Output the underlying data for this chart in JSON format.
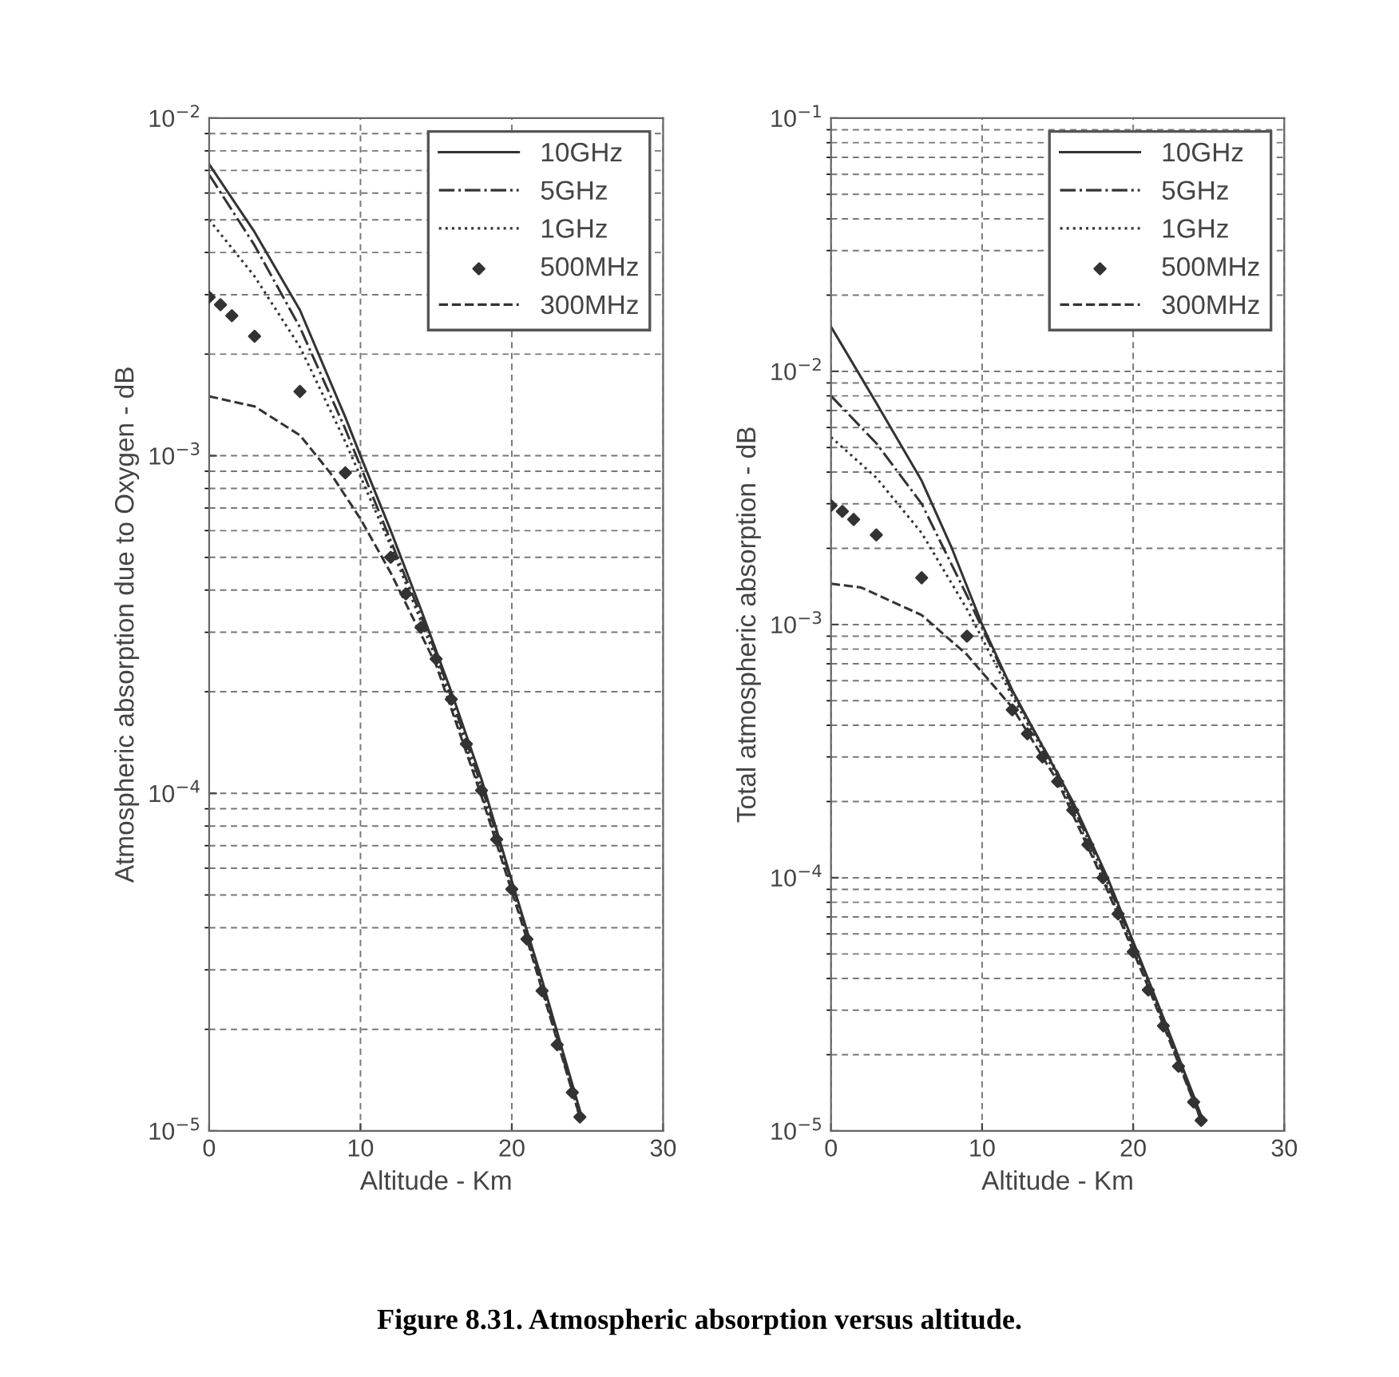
{
  "chart_data": [
    {
      "type": "line",
      "xlabel": "Altitude - Km",
      "ylabel": "Atmospheric absorption due to Oxygen - dB",
      "log": "y",
      "grid": true,
      "legend": "top right",
      "xlim": [
        0,
        30
      ],
      "xticks": [
        0,
        10,
        20,
        30
      ],
      "ylim": [
        1e-05,
        0.01
      ],
      "yticks": [
        {
          "value": 1e-05,
          "label": "10$^{−5}$"
        },
        {
          "value": 0.0001,
          "label": "10$^{−4}$"
        },
        {
          "value": 0.001,
          "label": "10$^{−3}$"
        },
        {
          "value": 0.01,
          "label": "10$^{−2}$"
        }
      ],
      "annotations": [
        "Figure 8.31. Atmospheric absorption versus altitude."
      ],
      "series": [
        {
          "name": "10GHz",
          "color": "#333333",
          "line_style": "solid",
          "x": [
            0,
            3,
            6,
            9,
            10,
            12,
            14,
            16,
            18,
            20,
            22,
            24.5
          ],
          "values": [
            0.0073,
            0.0046,
            0.0027,
            0.0013,
            0.001,
            0.0006,
            0.00035,
            0.0002,
            0.00011,
            5.5e-05,
            2.8e-05,
            1.15e-05
          ]
        },
        {
          "name": "5GHz",
          "color": "#333333",
          "line_style": "dashdot",
          "x": [
            0,
            3,
            6,
            9,
            12,
            15,
            18,
            21,
            24.5
          ],
          "values": [
            0.0068,
            0.0042,
            0.0024,
            0.0012,
            0.00056,
            0.00026,
            0.000105,
            3.9e-05,
            1.1e-05
          ]
        },
        {
          "name": "1GHz",
          "color": "#333333",
          "line_style": "dotted",
          "x": [
            0,
            3,
            6,
            9,
            12,
            15,
            18,
            21,
            24.5
          ],
          "values": [
            0.005,
            0.0034,
            0.0021,
            0.0011,
            0.00054,
            0.00025,
            0.0001,
            3.8e-05,
            1.1e-05
          ]
        },
        {
          "name": "500MHz",
          "type": "scatter",
          "marker": "diamond",
          "color": "#333333",
          "x": [
            0,
            0.75,
            1.5,
            3,
            6,
            9,
            12,
            13,
            14,
            15,
            16,
            17,
            18,
            19,
            20,
            21,
            22,
            23,
            24,
            24.5
          ],
          "values": [
            0.00295,
            0.0028,
            0.0026,
            0.00226,
            0.00155,
            0.00089,
            0.0005,
            0.00039,
            0.00031,
            0.00025,
            0.00019,
            0.00014,
            0.000102,
            7.3e-05,
            5.2e-05,
            3.7e-05,
            2.6e-05,
            1.8e-05,
            1.3e-05,
            1.1e-05
          ]
        },
        {
          "name": "300MHz",
          "color": "#333333",
          "line_style": "dashed",
          "x": [
            0,
            3,
            6,
            8,
            10,
            12,
            15,
            18,
            21,
            24.5
          ],
          "values": [
            0.0015,
            0.0014,
            0.00115,
            0.00089,
            0.00065,
            0.00045,
            0.00024,
            9.8e-05,
            3.7e-05,
            1.1e-05
          ]
        }
      ]
    },
    {
      "type": "line",
      "xlabel": "Altitude - Km",
      "ylabel": "Total atmospheric absorption - dB",
      "log": "y",
      "grid": true,
      "legend": "top right",
      "xlim": [
        0,
        30
      ],
      "xticks": [
        0,
        10,
        20,
        30
      ],
      "ylim": [
        1e-05,
        0.1
      ],
      "yticks": [
        {
          "value": 1e-05,
          "label": "10$^{−5}$"
        },
        {
          "value": 0.0001,
          "label": "10$^{−4}$"
        },
        {
          "value": 0.001,
          "label": "10$^{−3}$"
        },
        {
          "value": 0.01,
          "label": "10$^{−2}$"
        },
        {
          "value": 0.1,
          "label": "10$^{−1}$"
        }
      ],
      "series": [
        {
          "name": "10GHz",
          "color": "#333333",
          "line_style": "solid",
          "x": [
            0,
            3,
            6,
            8,
            10,
            12,
            14,
            16,
            18.3,
            20,
            22,
            24.5
          ],
          "values": [
            0.015,
            0.0075,
            0.0037,
            0.002,
            0.001,
            0.00055,
            0.00033,
            0.0002,
            0.0001,
            5.6e-05,
            2.8e-05,
            1.15e-05
          ]
        },
        {
          "name": "5GHz",
          "color": "#333333",
          "line_style": "dashdot",
          "x": [
            0,
            3,
            6,
            9,
            12,
            15,
            18,
            21,
            24.5
          ],
          "values": [
            0.008,
            0.0052,
            0.003,
            0.0013,
            0.00054,
            0.00026,
            0.000105,
            3.9e-05,
            1.1e-05
          ]
        },
        {
          "name": "1GHz",
          "color": "#333333",
          "line_style": "dotted",
          "x": [
            0,
            3,
            6,
            9,
            12,
            15,
            18,
            21,
            24.5
          ],
          "values": [
            0.0055,
            0.0038,
            0.0023,
            0.00115,
            0.00052,
            0.00025,
            0.0001,
            3.8e-05,
            1.1e-05
          ]
        },
        {
          "name": "500MHz",
          "type": "scatter",
          "marker": "diamond",
          "color": "#333333",
          "x": [
            0,
            0.75,
            1.5,
            3,
            6,
            9,
            12,
            13,
            14,
            15,
            16,
            17,
            18,
            19,
            20,
            21,
            22,
            23,
            24,
            24.5
          ],
          "values": [
            0.00295,
            0.0028,
            0.0026,
            0.00226,
            0.00153,
            0.0009,
            0.00046,
            0.00037,
            0.0003,
            0.00024,
            0.000185,
            0.000135,
            0.0001,
            7.2e-05,
            5.1e-05,
            3.6e-05,
            2.6e-05,
            1.8e-05,
            1.3e-05,
            1.1e-05
          ]
        },
        {
          "name": "300MHz",
          "color": "#333333",
          "line_style": "dashed",
          "x": [
            0,
            2,
            6,
            9,
            12,
            15,
            18,
            21,
            24.5
          ],
          "values": [
            0.00145,
            0.0014,
            0.00109,
            0.00076,
            0.00047,
            0.00024,
            9.8e-05,
            3.7e-05,
            1.1e-05
          ]
        }
      ]
    }
  ]
}
